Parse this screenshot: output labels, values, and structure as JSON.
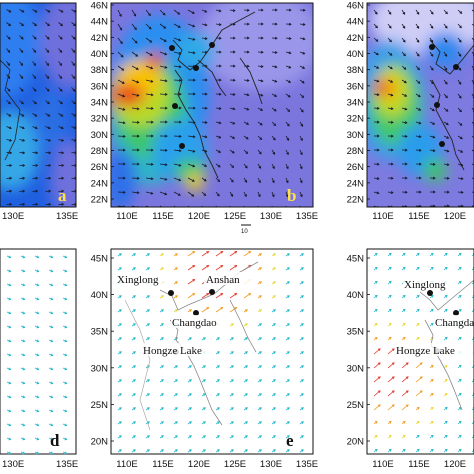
{
  "panels_top": {
    "a": {
      "letter": "a",
      "lon_ticks": [
        "130E",
        "135E"
      ]
    },
    "b": {
      "letter": "b",
      "lat_ticks": [
        "46N",
        "44N",
        "42N",
        "40N",
        "38N",
        "36N",
        "34N",
        "32N",
        "30N",
        "28N",
        "26N",
        "24N",
        "22N"
      ],
      "lon_ticks": [
        "110E",
        "115E",
        "120E",
        "125E",
        "130E",
        "135E"
      ],
      "vector_ref": "10"
    },
    "c": {
      "lat_ticks": [
        "46N",
        "44N",
        "42N",
        "40N",
        "38N",
        "36N",
        "34N",
        "32N",
        "30N",
        "28N",
        "26N",
        "24N",
        "22N"
      ],
      "lon_ticks": [
        "110E",
        "115E",
        "120E"
      ]
    }
  },
  "panels_bottom": {
    "d": {
      "letter": "d",
      "lon_ticks": [
        "130E",
        "135E"
      ]
    },
    "e": {
      "letter": "e",
      "lat_ticks": [
        "45N",
        "40N",
        "35N",
        "30N",
        "25N",
        "20N"
      ],
      "lon_ticks": [
        "110E",
        "115E",
        "120E",
        "125E",
        "130E",
        "135E"
      ],
      "cities": [
        "Xinglong",
        "Anshan",
        "Changdao",
        "Hongze Lake"
      ]
    },
    "f": {
      "lat_ticks": [
        "45N",
        "40N",
        "35N",
        "30N",
        "25N",
        "20N"
      ],
      "lon_ticks": [
        "110E",
        "115E",
        "120E"
      ],
      "cities": [
        "Xinglong",
        "Changdao",
        "Hongze Lake"
      ]
    }
  },
  "colors": {
    "high": "#e8201c",
    "mid_high": "#f6c400",
    "mid": "#37c56a",
    "mid_low": "#1f6fe0",
    "low": "#7874e0",
    "lowest": "#c8c4f4",
    "arrow_low": "#22b7c8",
    "arrow_high": "#e23a2a"
  }
}
